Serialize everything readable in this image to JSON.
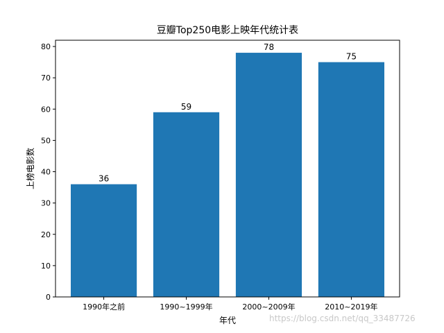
{
  "chart_data": {
    "type": "bar",
    "title": "豆瓣Top250电影上映年代统计表",
    "xlabel": "年代",
    "ylabel": "上榜电影数",
    "categories": [
      "1990年之前",
      "1990~1999年",
      "2000~2009年",
      "2010~2019年"
    ],
    "values": [
      36,
      59,
      78,
      75
    ],
    "ylim": [
      0,
      82
    ],
    "yticks": [
      0,
      10,
      20,
      30,
      40,
      50,
      60,
      70,
      80
    ],
    "data_labels": true,
    "bar_color": "#1f77b4",
    "grid": false,
    "legend": "none"
  },
  "watermark": "https://blog.csdn.net/qq_33487726"
}
